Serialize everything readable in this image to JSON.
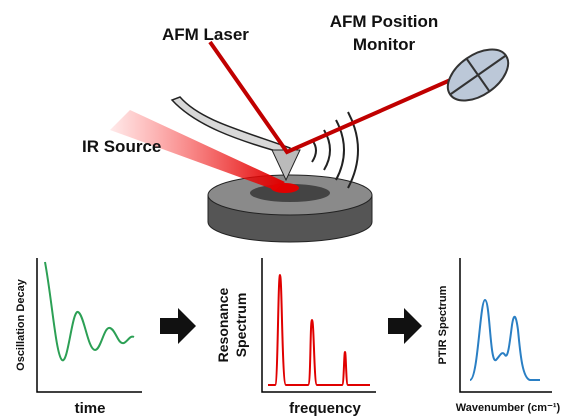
{
  "labels": {
    "afm_laser": "AFM Laser",
    "afm_position_monitor": [
      "AFM Position",
      "Monitor"
    ],
    "ir_source": "IR Source"
  },
  "panels": [
    {
      "y_label": "Oscillation Decay",
      "x_label": "time"
    },
    {
      "y_label": [
        "Resonance",
        "Spectrum"
      ],
      "x_label": "frequency"
    },
    {
      "y_label": "PTIR Spectrum",
      "x_label": "Wavenumber (cm⁻¹)"
    }
  ]
}
